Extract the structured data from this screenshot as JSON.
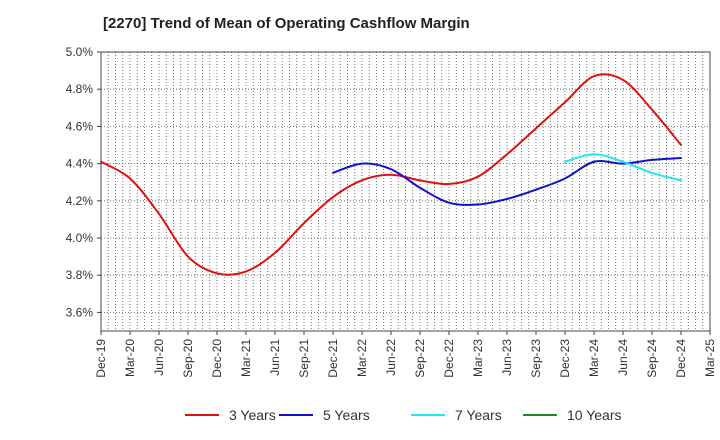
{
  "chart_data": {
    "type": "line",
    "title": "[2270]  Trend of Mean of Operating Cashflow Margin",
    "xlabel": "",
    "ylabel": "",
    "x_categories": [
      "Dec-19",
      "Mar-20",
      "Jun-20",
      "Sep-20",
      "Dec-20",
      "Mar-21",
      "Jun-21",
      "Sep-21",
      "Dec-21",
      "Mar-22",
      "Jun-22",
      "Sep-22",
      "Dec-22",
      "Mar-23",
      "Jun-23",
      "Sep-23",
      "Dec-23",
      "Mar-24",
      "Jun-24",
      "Sep-24",
      "Dec-24",
      "Mar-25"
    ],
    "ylim": [
      3.5,
      5.0
    ],
    "y_ticks": [
      "5.0%",
      "4.8%",
      "4.6%",
      "4.4%",
      "4.2%",
      "4.0%",
      "3.8%",
      "3.6%"
    ],
    "y_tick_values": [
      5.0,
      4.8,
      4.6,
      4.4,
      4.2,
      4.0,
      3.8,
      3.6
    ],
    "grid": true,
    "legend_position": "bottom",
    "series": [
      {
        "name": "3 Years",
        "color": "#dd1111",
        "points": [
          [
            0,
            4.41
          ],
          [
            1,
            4.32
          ],
          [
            2,
            4.13
          ],
          [
            3,
            3.9
          ],
          [
            4,
            3.81
          ],
          [
            5,
            3.82
          ],
          [
            6,
            3.92
          ],
          [
            7,
            4.08
          ],
          [
            8,
            4.22
          ],
          [
            9,
            4.31
          ],
          [
            10,
            4.34
          ],
          [
            11,
            4.31
          ],
          [
            12,
            4.29
          ],
          [
            13,
            4.33
          ],
          [
            14,
            4.45
          ],
          [
            15,
            4.59
          ],
          [
            16,
            4.73
          ],
          [
            17,
            4.87
          ],
          [
            18,
            4.85
          ],
          [
            19,
            4.69
          ],
          [
            20,
            4.5
          ]
        ]
      },
      {
        "name": "5 Years",
        "color": "#1111cc",
        "points": [
          [
            8,
            4.35
          ],
          [
            9,
            4.4
          ],
          [
            10,
            4.37
          ],
          [
            11,
            4.27
          ],
          [
            12,
            4.19
          ],
          [
            13,
            4.18
          ],
          [
            14,
            4.21
          ],
          [
            15,
            4.26
          ],
          [
            16,
            4.32
          ],
          [
            17,
            4.41
          ],
          [
            18,
            4.4
          ],
          [
            19,
            4.42
          ],
          [
            20,
            4.43
          ]
        ]
      },
      {
        "name": "7 Years",
        "color": "#22e5ee",
        "points": [
          [
            16,
            4.41
          ],
          [
            17,
            4.45
          ],
          [
            18,
            4.41
          ],
          [
            19,
            4.35
          ],
          [
            20,
            4.31
          ]
        ]
      },
      {
        "name": "10 Years",
        "color": "#228822",
        "points": []
      }
    ]
  }
}
